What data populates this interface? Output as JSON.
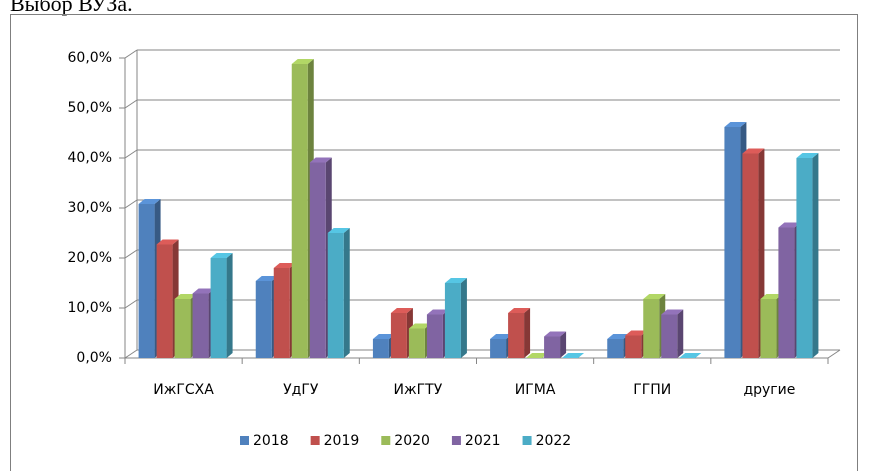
{
  "chart_data": {
    "type": "bar3d",
    "title": "Выбор ВУЗа.",
    "categories": [
      "ИжГСХА",
      "УдГУ",
      "ИжГТУ",
      "ИГМА",
      "ГГПИ",
      "другие"
    ],
    "series": [
      {
        "name": "2018",
        "color": "#4f81bd",
        "values": [
          30.8,
          15.4,
          3.8,
          3.8,
          3.8,
          46.2
        ]
      },
      {
        "name": "2019",
        "color": "#c0504d",
        "values": [
          22.7,
          18.0,
          9.0,
          9.0,
          4.5,
          40.9
        ]
      },
      {
        "name": "2020",
        "color": "#9bbb59",
        "values": [
          11.8,
          58.8,
          5.9,
          0,
          11.8,
          11.8
        ]
      },
      {
        "name": "2021",
        "color": "#8064a2",
        "values": [
          12.9,
          39.1,
          8.7,
          4.3,
          8.7,
          26.1
        ]
      },
      {
        "name": "2022",
        "color": "#4bacc6",
        "values": [
          20.0,
          25.0,
          15.0,
          0,
          0,
          40.0
        ]
      }
    ],
    "ylim": [
      0,
      60
    ],
    "yticks": [
      {
        "value": 0,
        "label": "0,0%"
      },
      {
        "value": 10,
        "label": "10,0%"
      },
      {
        "value": 20,
        "label": "20,0%"
      },
      {
        "value": 30,
        "label": "30,0%"
      },
      {
        "value": 40,
        "label": "40,0%"
      },
      {
        "value": 50,
        "label": "50,0%"
      },
      {
        "value": 60,
        "label": "60,0%"
      }
    ],
    "grid": true,
    "legend": "bottom"
  }
}
